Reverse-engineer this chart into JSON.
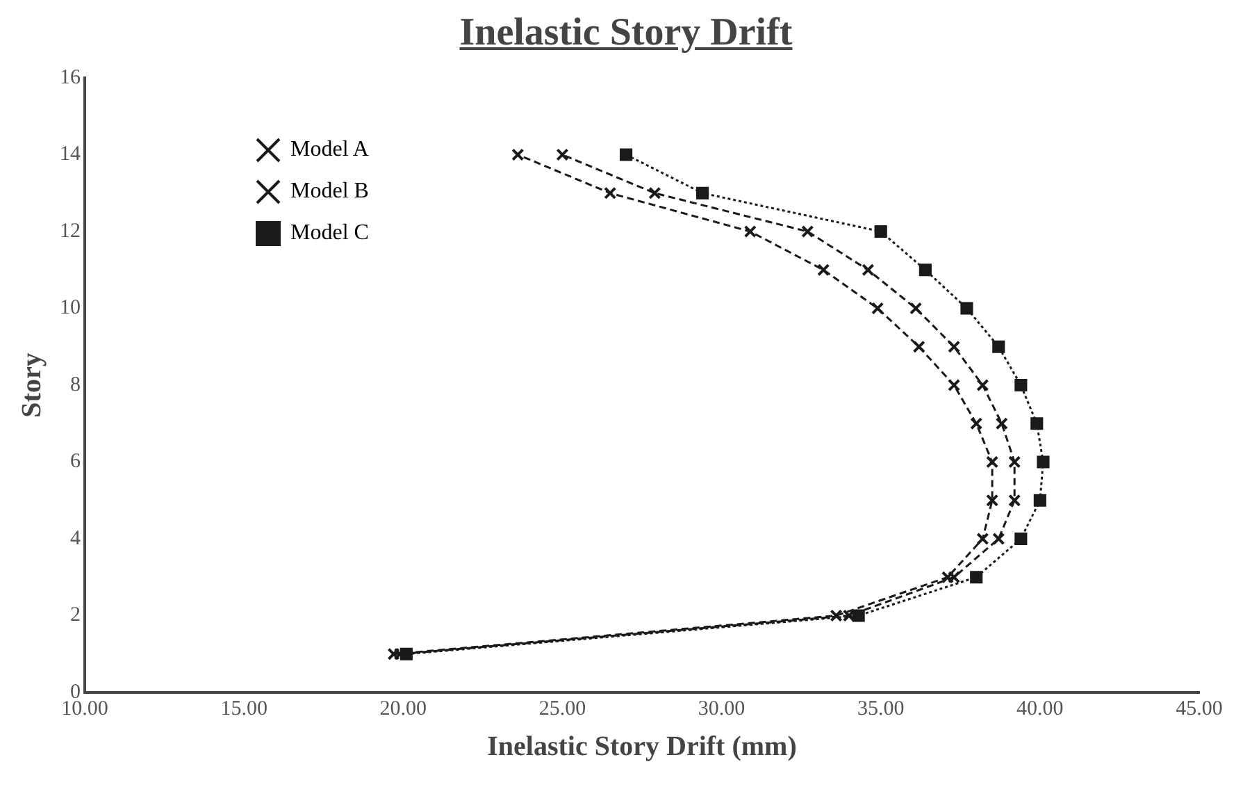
{
  "chart_data": {
    "type": "line",
    "title": "Inelastic Story Drift",
    "xlabel": "Inelastic Story Drift (mm)",
    "ylabel": "Story",
    "xlim": [
      10,
      45
    ],
    "xticks": [
      {
        "value": 10,
        "label": "10.00"
      },
      {
        "value": 15,
        "label": "15.00"
      },
      {
        "value": 20,
        "label": "20.00"
      },
      {
        "value": 25,
        "label": "25.00"
      },
      {
        "value": 30,
        "label": "30.00"
      },
      {
        "value": 35,
        "label": "35.00"
      },
      {
        "value": 40,
        "label": "40.00"
      },
      {
        "value": 45,
        "label": "45.00"
      }
    ],
    "ylim": [
      0,
      16
    ],
    "yticks": [
      0,
      2,
      4,
      6,
      8,
      10,
      12,
      14,
      16
    ],
    "grid": false,
    "legend": "top left",
    "series": [
      {
        "name": "Model A",
        "color": "#1a1a1a",
        "marker": "cross",
        "line_style": "dashed",
        "x": [
          19.7,
          33.6,
          37.1,
          38.2,
          38.5,
          38.5,
          38.0,
          37.3,
          36.2,
          34.9,
          33.2,
          30.9,
          26.5,
          23.6
        ],
        "values": [
          1,
          2,
          3,
          4,
          5,
          6,
          7,
          8,
          9,
          10,
          11,
          12,
          13,
          14
        ]
      },
      {
        "name": "Model B",
        "color": "#1a1a1a",
        "marker": "cross",
        "line_style": "dashed",
        "x": [
          19.9,
          34.0,
          37.3,
          38.7,
          39.2,
          39.2,
          38.8,
          38.2,
          37.3,
          36.1,
          34.6,
          32.7,
          27.9,
          25.0
        ],
        "values": [
          1,
          2,
          3,
          4,
          5,
          6,
          7,
          8,
          9,
          10,
          11,
          12,
          13,
          14
        ]
      },
      {
        "name": "Model C",
        "color": "#1a1a1a",
        "marker": "square",
        "line_style": "dotted",
        "x": [
          20.1,
          34.3,
          38.0,
          39.4,
          40.0,
          40.1,
          39.9,
          39.4,
          38.7,
          37.7,
          36.4,
          35.0,
          29.4,
          27.0
        ],
        "values": [
          1,
          2,
          3,
          4,
          5,
          6,
          7,
          8,
          9,
          10,
          11,
          12,
          13,
          14
        ]
      }
    ]
  }
}
